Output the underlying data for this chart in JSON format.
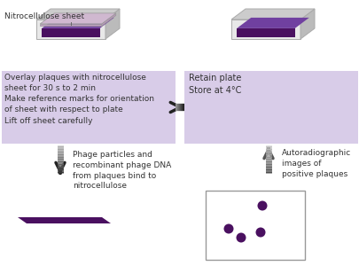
{
  "bg_color": "#ffffff",
  "purple_dark": "#4a1060",
  "purple_mid": "#7040a0",
  "purple_light": "#c8a8d8",
  "purple_box": "#d8cce8",
  "box_left_text": "Overlay plaques with nitrocellulose\nsheet for 30 s to 2 min\nMake reference marks for orientation\nof sheet with respect to plate\nLift off sheet carefully",
  "box_right_text": "Retain plate\nStore at 4°C",
  "label_sheet": "Nitrocellulose sheet",
  "label_phage": "Phage particles and\nrecombinant phage DNA\nfrom plaques bind to\nnitrocellulose",
  "label_auto": "Autoradiographic\nimages of\npositive plaques",
  "dot_color": "#4a1060",
  "font_size": 6.5,
  "text_color": "#333333",
  "frame_color": "#aaaaaa",
  "gray_light": "#e8e8e8",
  "gray_mid": "#cccccc",
  "gray_dark": "#bbbbbb",
  "sheet_color": "#c0a0c0",
  "arrow_dark": "#333333",
  "arrow_mid": "#777777",
  "arrow_light": "#aaaaaa"
}
